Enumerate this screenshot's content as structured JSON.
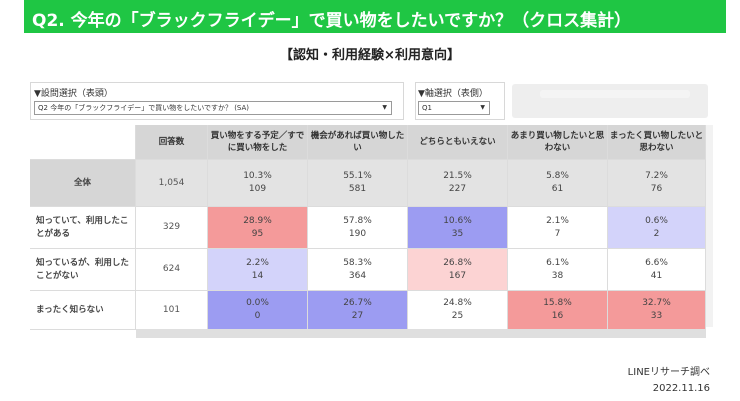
{
  "title": "Q2. 今年の「ブラックフライデー」で買い物をしたいですか？（クロス集計）",
  "subtitle": "【認知・利用経験×利用意向】",
  "selectors": {
    "question": {
      "label": "▼設問選択（表頭）",
      "value": "Q2 今年の「ブラックフライデー」で買い物をしたいですか？ (SA)"
    },
    "axis": {
      "label": "▼軸選択（表側）",
      "value": "Q1"
    }
  },
  "table": {
    "count_header": "回答数",
    "columns": [
      "買い物をする予定／すでに買い物をした",
      "機会があれば買い物したい",
      "どちらともいえない",
      "あまり買い物したいと思わない",
      "まったく買い物したいと思わない"
    ],
    "rows": [
      {
        "label": "全体",
        "count": "1,054",
        "cells": [
          {
            "pct": "10.3%",
            "n": "109"
          },
          {
            "pct": "55.1%",
            "n": "581"
          },
          {
            "pct": "21.5%",
            "n": "227"
          },
          {
            "pct": "5.8%",
            "n": "61"
          },
          {
            "pct": "7.2%",
            "n": "76"
          }
        ]
      },
      {
        "label": "知っていて、利用したことがある",
        "count": "329",
        "cells": [
          {
            "pct": "28.9%",
            "n": "95"
          },
          {
            "pct": "57.8%",
            "n": "190"
          },
          {
            "pct": "10.6%",
            "n": "35"
          },
          {
            "pct": "2.1%",
            "n": "7"
          },
          {
            "pct": "0.6%",
            "n": "2"
          }
        ]
      },
      {
        "label": "知っているが、利用したことがない",
        "count": "624",
        "cells": [
          {
            "pct": "2.2%",
            "n": "14"
          },
          {
            "pct": "58.3%",
            "n": "364"
          },
          {
            "pct": "26.8%",
            "n": "167"
          },
          {
            "pct": "6.1%",
            "n": "38"
          },
          {
            "pct": "6.6%",
            "n": "41"
          }
        ]
      },
      {
        "label": "まったく知らない",
        "count": "101",
        "cells": [
          {
            "pct": "0.0%",
            "n": "0"
          },
          {
            "pct": "26.7%",
            "n": "27"
          },
          {
            "pct": "24.8%",
            "n": "25"
          },
          {
            "pct": "15.8%",
            "n": "16"
          },
          {
            "pct": "32.7%",
            "n": "33"
          }
        ]
      }
    ]
  },
  "colors": {
    "title_bg": "#1fc644",
    "strong_high": "#f49a9a",
    "mild_high": "#fcd3d3",
    "strong_low": "#9c9cf2",
    "mild_low": "#d3d3fa",
    "overall_row": "#e3e3e3"
  },
  "source": "LINEリサーチ調べ",
  "date": "2022.11.16"
}
